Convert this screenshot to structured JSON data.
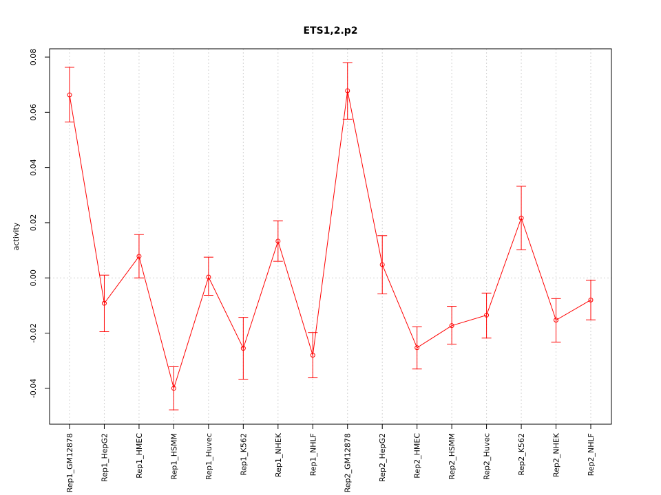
{
  "chart_data": {
    "type": "line",
    "title": "ETS1,2.p2",
    "xlabel": "",
    "ylabel": "activity",
    "ylim": [
      -0.053,
      0.083
    ],
    "yticks": [
      -0.04,
      -0.02,
      0.0,
      0.02,
      0.04,
      0.06,
      0.08
    ],
    "ytick_labels": [
      "-0.04",
      "-0.02",
      "0.00",
      "0.02",
      "0.04",
      "0.06",
      "0.08"
    ],
    "grid": true,
    "color": "#ff0000",
    "categories": [
      "Rep1_GM12878",
      "Rep1_HepG2",
      "Rep1_HMEC",
      "Rep1_HSMM",
      "Rep1_Huvec",
      "Rep1_K562",
      "Rep1_NHEK",
      "Rep1_NHLF",
      "Rep2_GM12878",
      "Rep2_HepG2",
      "Rep2_HMEC",
      "Rep2_HSMM",
      "Rep2_Huvec",
      "Rep2_K562",
      "Rep2_NHEK",
      "Rep2_NHLF"
    ],
    "series": [
      {
        "name": "activity",
        "values": [
          0.0663,
          -0.0092,
          0.0078,
          -0.04,
          0.0003,
          -0.0255,
          0.0133,
          -0.028,
          0.0678,
          0.0048,
          -0.0253,
          -0.0173,
          -0.0135,
          0.0217,
          -0.0153,
          -0.008
        ],
        "upper": [
          0.0763,
          0.001,
          0.0157,
          -0.0322,
          0.0075,
          -0.0143,
          0.0207,
          -0.0198,
          0.078,
          0.0153,
          -0.0177,
          -0.0103,
          -0.0055,
          0.0332,
          -0.0075,
          -0.0008
        ],
        "lower": [
          0.0565,
          -0.0195,
          0.0,
          -0.0478,
          -0.0063,
          -0.0367,
          0.006,
          -0.0362,
          0.0575,
          -0.0058,
          -0.033,
          -0.024,
          -0.0218,
          0.0102,
          -0.0233,
          -0.0152
        ]
      }
    ]
  }
}
